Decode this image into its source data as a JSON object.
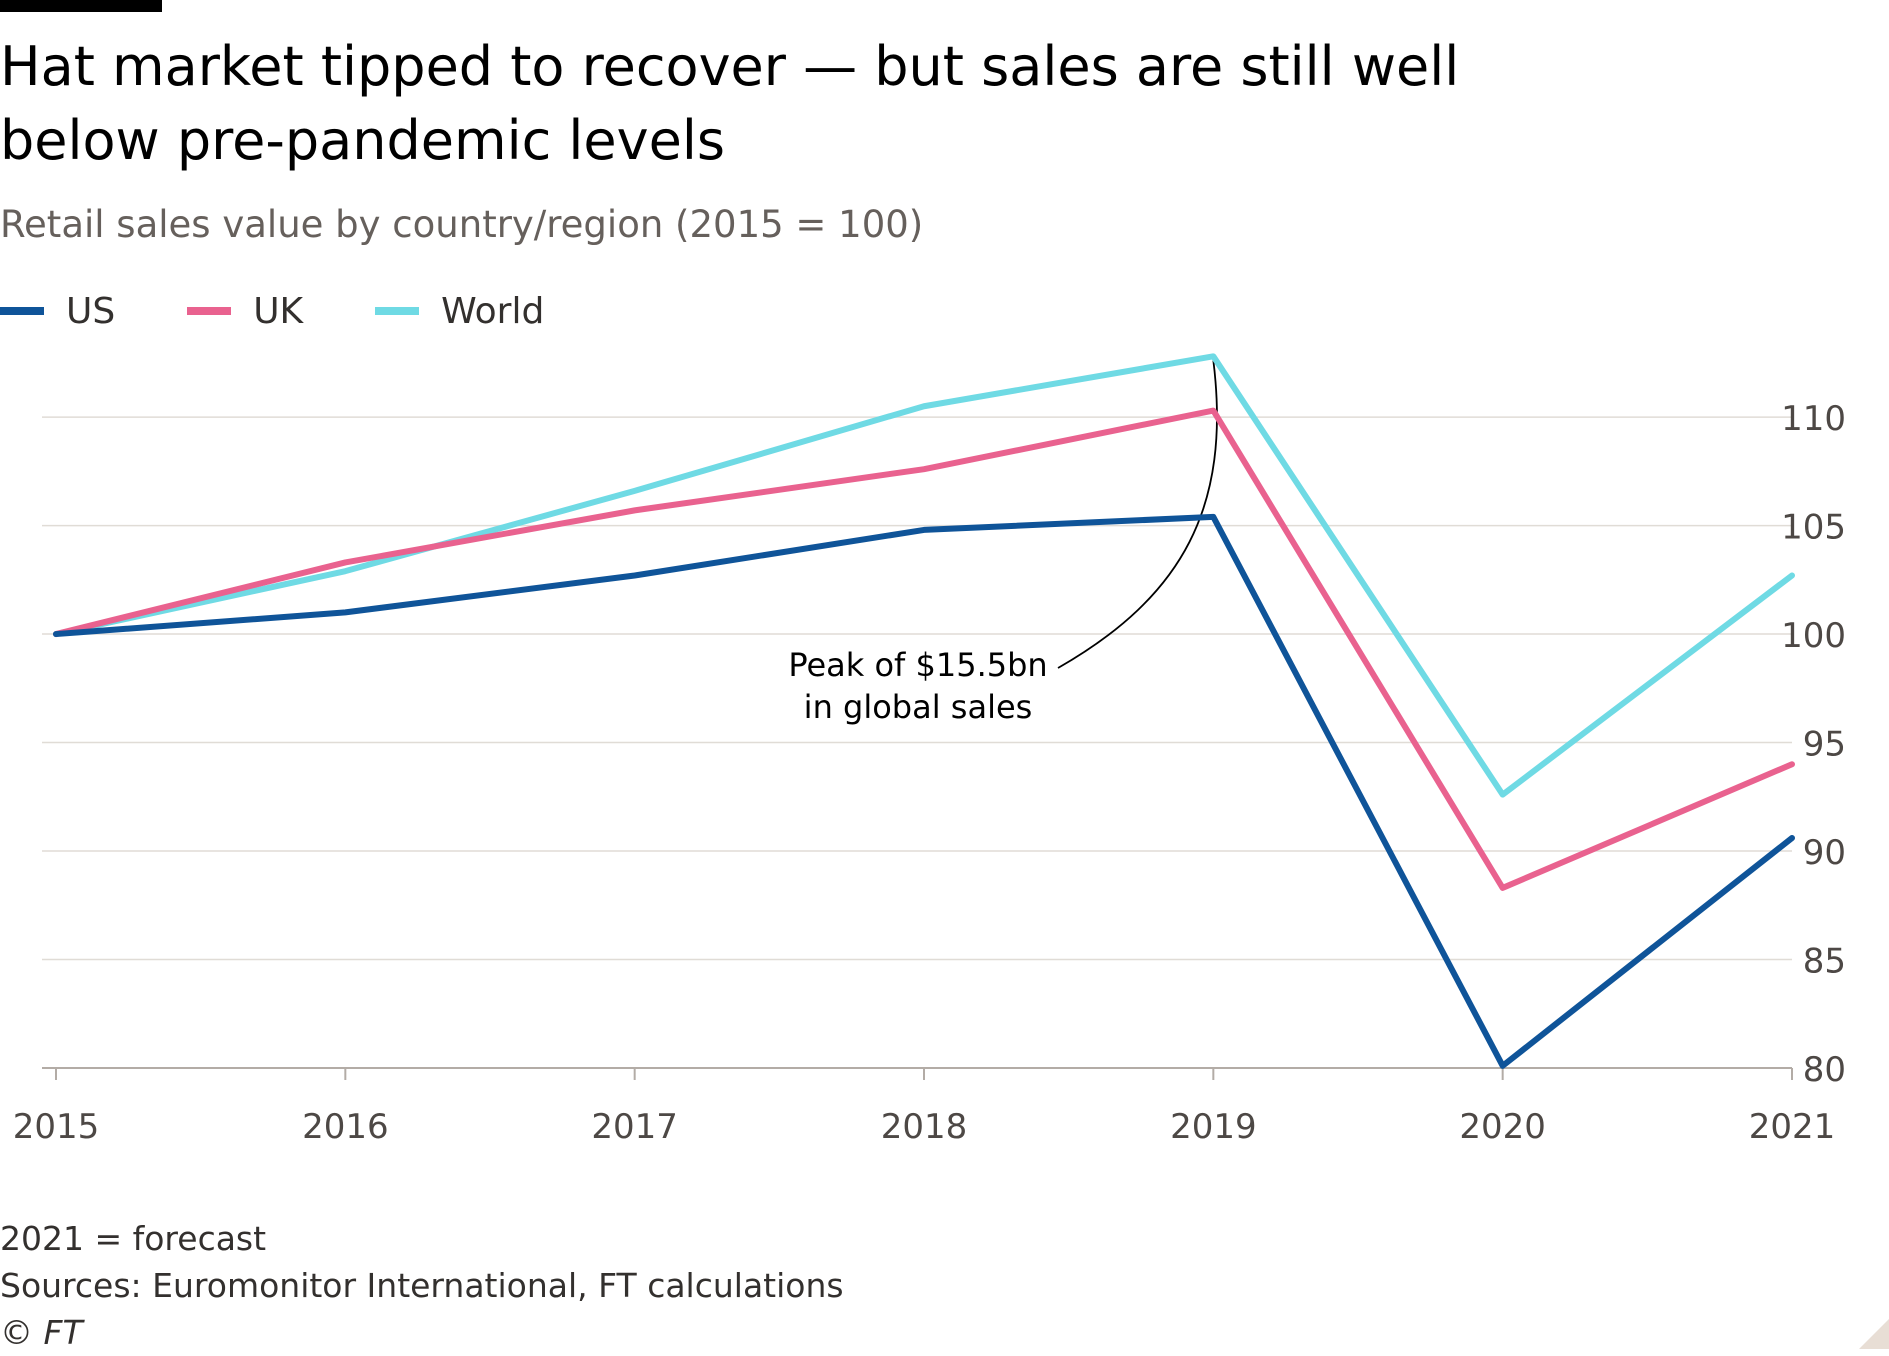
{
  "title": "Hat market tipped to recover — but sales are still well below pre-pandemic levels",
  "subtitle": "Retail sales value by country/region (2015 = 100)",
  "legend": [
    {
      "label": "US",
      "color": "#0f5499"
    },
    {
      "label": "UK",
      "color": "#e9628f"
    },
    {
      "label": "World",
      "color": "#6fdae4"
    }
  ],
  "chart_data": {
    "type": "line",
    "title": "Hat market tipped to recover — but sales are still well below pre-pandemic levels",
    "subtitle": "Retail sales value by country/region (2015 = 100)",
    "xlabel": "",
    "ylabel": "",
    "x": [
      "2015",
      "2016",
      "2017",
      "2018",
      "2019",
      "2020",
      "2021"
    ],
    "ylim": [
      80,
      113
    ],
    "yticks": [
      80,
      85,
      90,
      95,
      100,
      105,
      110
    ],
    "grid": true,
    "legend_position": "top-left",
    "series": [
      {
        "name": "US",
        "color": "#0f5499",
        "values": [
          100,
          101,
          102.7,
          104.8,
          105.4,
          80.1,
          90.6
        ]
      },
      {
        "name": "UK",
        "color": "#e9628f",
        "values": [
          100,
          103.3,
          105.7,
          107.6,
          110.3,
          88.3,
          94
        ]
      },
      {
        "name": "World",
        "color": "#6fdae4",
        "values": [
          100,
          102.9,
          106.6,
          110.5,
          112.8,
          92.6,
          102.7
        ]
      }
    ],
    "annotations": [
      {
        "lines": [
          "Peak of $15.5bn",
          "in global sales"
        ],
        "x": "2019",
        "y": 112.8,
        "series": "World"
      }
    ]
  },
  "footer": {
    "note": "2021 = forecast",
    "sources": "Sources: Euromonitor International, FT calculations",
    "copyright": "© FT"
  }
}
